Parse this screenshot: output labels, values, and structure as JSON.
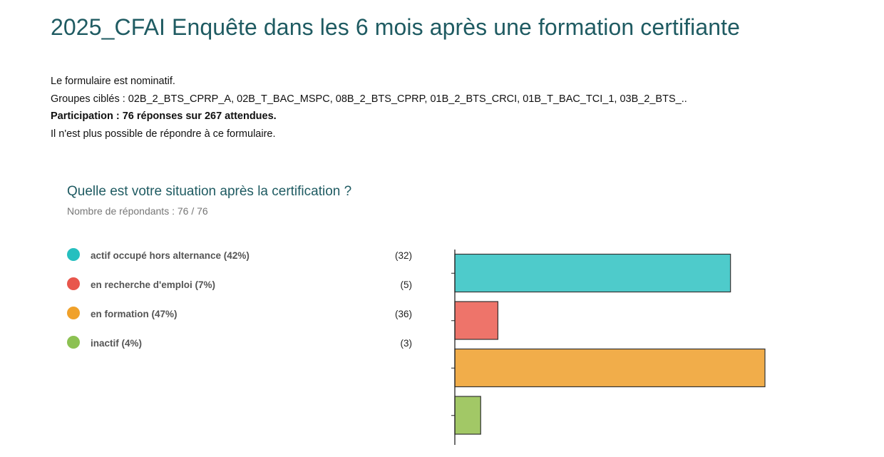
{
  "header": {
    "title": "2025_CFAI Enquête dans les 6 mois après une formation certifiante"
  },
  "info": {
    "nominative": "Le formulaire est nominatif.",
    "groups": "Groupes ciblés : 02B_2_BTS_CPRP_A, 02B_T_BAC_MSPC, 08B_2_BTS_CPRP, 01B_2_BTS_CRCI, 01B_T_BAC_TCI_1, 03B_2_BTS_..",
    "participation": "Participation : 76 réponses sur 267 attendues.",
    "closed": "Il n'est plus possible de répondre à ce formulaire."
  },
  "question": {
    "title": "Quelle est votre situation après la certification ?",
    "respondents": "Nombre de répondants : 76 / 76"
  },
  "legend": [
    {
      "label": "actif occupé hors alternance (42%)",
      "count": "(32)",
      "color": "#26bfbf"
    },
    {
      "label": "en recherche d'emploi (7%)",
      "count": "(5)",
      "color": "#e8564c"
    },
    {
      "label": "en formation (47%)",
      "count": "(36)",
      "color": "#f0a12a"
    },
    {
      "label": "inactif (4%)",
      "count": "(3)",
      "color": "#8cc152"
    }
  ],
  "chart_data": {
    "type": "bar",
    "orientation": "horizontal",
    "categories": [
      "actif occupé hors alternance",
      "en recherche d'emploi",
      "en formation",
      "inactif"
    ],
    "values": [
      32,
      5,
      36,
      3
    ],
    "colors": [
      "#4ecbcb",
      "#ee746a",
      "#f1ad4a",
      "#a2c866"
    ],
    "xlim": [
      0,
      36
    ],
    "grid": false
  }
}
